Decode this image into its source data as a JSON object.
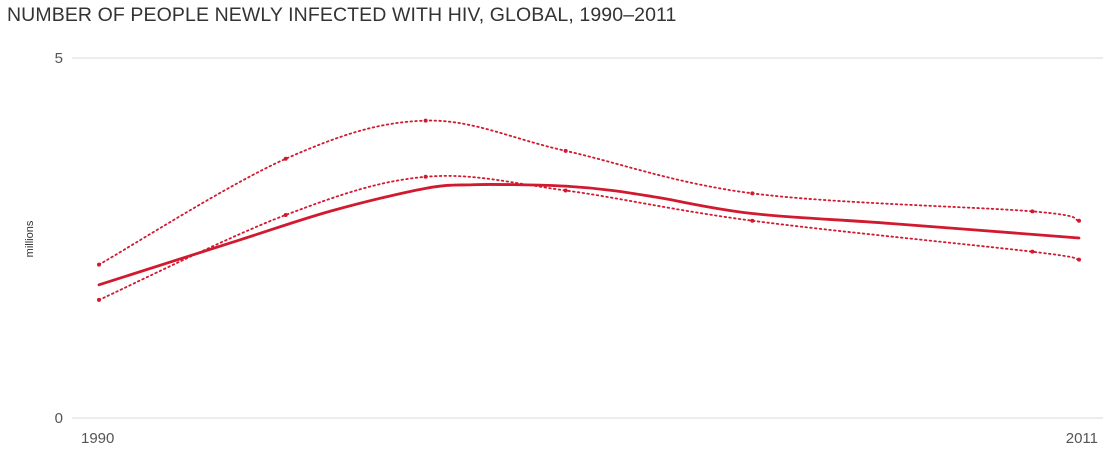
{
  "chart_data": {
    "type": "line",
    "title": "NUMBER OF PEOPLE NEWLY INFECTED WITH HIV, GLOBAL, 1990–2011",
    "ylabel": "millions",
    "xlabel": "",
    "xlim": [
      1990,
      2011
    ],
    "ylim": [
      0,
      5
    ],
    "y_ticks": [
      "0",
      "5"
    ],
    "x_ticks": [
      "1990",
      "2011"
    ],
    "grid": "horizontal",
    "colors": {
      "line": "#d1192f",
      "grid": "#d8d8d8"
    },
    "series": [
      {
        "style": "solid",
        "x": [
          1990,
          1993,
          1995,
          1997,
          1998,
          1999,
          2000,
          2001,
          2002,
          2004,
          2007,
          2011
        ],
        "values": [
          1.85,
          2.47,
          2.88,
          3.19,
          3.24,
          3.24,
          3.22,
          3.16,
          3.06,
          2.84,
          2.7,
          2.5
        ]
      },
      {
        "style": "dotted",
        "x": [
          1990,
          1994,
          1997,
          2000,
          2004,
          2010,
          2011
        ],
        "values": [
          2.13,
          3.6,
          4.13,
          3.71,
          3.12,
          2.87,
          2.74
        ]
      },
      {
        "style": "dotted",
        "x": [
          1990,
          1994,
          1997,
          2000,
          2004,
          2010,
          2011
        ],
        "values": [
          1.64,
          2.82,
          3.35,
          3.16,
          2.74,
          2.31,
          2.2
        ]
      }
    ]
  }
}
